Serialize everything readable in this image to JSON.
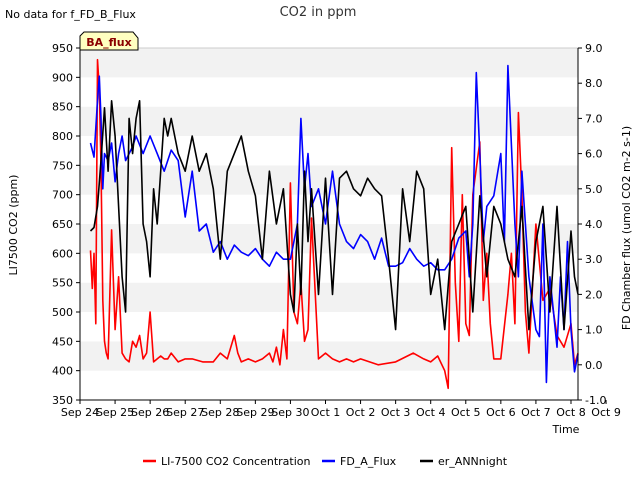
{
  "chart_data": {
    "type": "line",
    "title": "CO2 in ppm",
    "note": "No data for f_FD_B_Flux",
    "badge": "BA_flux",
    "xlabel": "Time",
    "ylabel": "LI7500 CO2 (ppm)",
    "y2label": "FD Chamber flux (umol CO2 m-2 s-1)",
    "xlim": [
      0,
      14.2
    ],
    "ylim": [
      350,
      950
    ],
    "y2lim": [
      -1.0,
      9.0
    ],
    "x_ticks": [
      {
        "v": 0,
        "label": "Sep 24"
      },
      {
        "v": 1,
        "label": "Sep 25"
      },
      {
        "v": 2,
        "label": "Sep 26"
      },
      {
        "v": 3,
        "label": "Sep 27"
      },
      {
        "v": 4,
        "label": "Sep 28"
      },
      {
        "v": 5,
        "label": "Sep 29"
      },
      {
        "v": 6,
        "label": "Sep 30"
      },
      {
        "v": 7,
        "label": "Oct 1"
      },
      {
        "v": 8,
        "label": "Oct 2"
      },
      {
        "v": 9,
        "label": "Oct 3"
      },
      {
        "v": 10,
        "label": "Oct 4"
      },
      {
        "v": 11,
        "label": "Oct 5"
      },
      {
        "v": 12,
        "label": "Oct 6"
      },
      {
        "v": 13,
        "label": "Oct 7"
      },
      {
        "v": 14,
        "label": "Oct 8"
      },
      {
        "v": 15,
        "label": "Oct 9"
      }
    ],
    "y_ticks": [
      350,
      400,
      450,
      500,
      550,
      600,
      650,
      700,
      750,
      800,
      850,
      900,
      950
    ],
    "y2_ticks": [
      {
        "v": -1.0,
        "label": "-1.0"
      },
      {
        "v": 0.0,
        "label": "0.0"
      },
      {
        "v": 1.0,
        "label": "1.0"
      },
      {
        "v": 2.0,
        "label": "2.0"
      },
      {
        "v": 3.0,
        "label": "3.0"
      },
      {
        "v": 4.0,
        "label": "4.0"
      },
      {
        "v": 5.0,
        "label": "5.0"
      },
      {
        "v": 6.0,
        "label": "6.0"
      },
      {
        "v": 7.0,
        "label": "7.0"
      },
      {
        "v": 8.0,
        "label": "8.0"
      },
      {
        "v": 9.0,
        "label": "9.0"
      }
    ],
    "grid": "horizontal bands",
    "legend_position": "bottom",
    "series": [
      {
        "name": "LI-7500 CO2 Concentration",
        "axis": "left",
        "color": "#ff0000",
        "x": [
          0.3,
          0.35,
          0.4,
          0.45,
          0.5,
          0.55,
          0.6,
          0.65,
          0.7,
          0.75,
          0.8,
          0.9,
          1.0,
          1.1,
          1.2,
          1.3,
          1.4,
          1.5,
          1.6,
          1.7,
          1.8,
          1.9,
          2.0,
          2.1,
          2.2,
          2.3,
          2.4,
          2.5,
          2.6,
          2.8,
          3.0,
          3.2,
          3.5,
          3.8,
          4.0,
          4.2,
          4.4,
          4.5,
          4.6,
          4.8,
          5.0,
          5.2,
          5.4,
          5.5,
          5.6,
          5.7,
          5.8,
          5.9,
          6.0,
          6.1,
          6.2,
          6.3,
          6.4,
          6.5,
          6.6,
          6.8,
          7.0,
          7.2,
          7.4,
          7.6,
          7.8,
          8.0,
          8.5,
          9.0,
          9.5,
          9.8,
          10.0,
          10.2,
          10.4,
          10.5,
          10.6,
          10.7,
          10.8,
          10.9,
          11.0,
          11.1,
          11.2,
          11.4,
          11.5,
          11.6,
          11.7,
          11.8,
          12.0,
          12.2,
          12.3,
          12.4,
          12.5,
          12.6,
          12.7,
          12.8,
          13.0,
          13.2,
          13.4,
          13.6,
          13.8,
          14.0,
          14.1,
          14.2
        ],
        "y": [
          605,
          540,
          600,
          480,
          930,
          880,
          750,
          520,
          450,
          430,
          420,
          640,
          470,
          560,
          430,
          420,
          415,
          450,
          440,
          460,
          420,
          430,
          500,
          415,
          420,
          425,
          420,
          420,
          430,
          415,
          420,
          420,
          415,
          415,
          430,
          420,
          460,
          430,
          415,
          420,
          415,
          420,
          430,
          415,
          440,
          410,
          470,
          420,
          720,
          500,
          480,
          550,
          450,
          470,
          660,
          420,
          430,
          420,
          415,
          420,
          415,
          420,
          410,
          415,
          430,
          420,
          415,
          425,
          400,
          370,
          780,
          550,
          450,
          700,
          480,
          460,
          700,
          790,
          520,
          600,
          480,
          420,
          420,
          530,
          600,
          480,
          840,
          700,
          500,
          430,
          650,
          520,
          540,
          460,
          440,
          480,
          410,
          430
        ]
      },
      {
        "name": "FD_A_Flux",
        "axis": "right",
        "color": "#0000ff",
        "x": [
          0.3,
          0.4,
          0.5,
          0.55,
          0.6,
          0.65,
          0.7,
          0.8,
          0.9,
          1.0,
          1.1,
          1.2,
          1.3,
          1.4,
          1.5,
          1.6,
          1.8,
          2.0,
          2.2,
          2.4,
          2.6,
          2.8,
          3.0,
          3.2,
          3.4,
          3.6,
          3.8,
          4.0,
          4.2,
          4.4,
          4.6,
          4.8,
          5.0,
          5.2,
          5.4,
          5.6,
          5.8,
          6.0,
          6.2,
          6.3,
          6.4,
          6.5,
          6.6,
          6.8,
          7.0,
          7.2,
          7.4,
          7.6,
          7.8,
          8.0,
          8.2,
          8.4,
          8.6,
          8.8,
          9.0,
          9.2,
          9.4,
          9.6,
          9.8,
          10.0,
          10.2,
          10.4,
          10.6,
          10.8,
          11.0,
          11.1,
          11.2,
          11.3,
          11.4,
          11.5,
          11.6,
          11.8,
          12.0,
          12.1,
          12.2,
          12.4,
          12.5,
          12.6,
          12.7,
          12.8,
          13.0,
          13.1,
          13.2,
          13.3,
          13.4,
          13.5,
          13.6,
          13.7,
          13.8,
          13.9,
          14.0,
          14.1,
          14.2
        ],
        "y": [
          6.3,
          5.9,
          7.5,
          8.2,
          7.0,
          5.0,
          6.0,
          5.8,
          6.3,
          5.2,
          6.0,
          6.5,
          5.8,
          6.0,
          6.2,
          6.5,
          6.0,
          6.5,
          6.0,
          5.5,
          6.1,
          5.8,
          4.2,
          5.5,
          3.8,
          4.0,
          3.2,
          3.5,
          3.0,
          3.4,
          3.2,
          3.1,
          3.3,
          3.0,
          2.8,
          3.2,
          3.0,
          3.0,
          4.0,
          7.0,
          5.0,
          6.0,
          4.5,
          5.0,
          4.0,
          5.5,
          4.0,
          3.5,
          3.3,
          3.7,
          3.5,
          3.0,
          3.6,
          2.8,
          2.8,
          2.9,
          3.3,
          3.0,
          2.8,
          2.9,
          2.7,
          2.7,
          3.0,
          3.6,
          3.8,
          2.5,
          4.0,
          8.3,
          6.0,
          3.5,
          4.5,
          4.8,
          6.0,
          3.5,
          8.5,
          4.0,
          2.5,
          5.5,
          4.0,
          2.5,
          1.0,
          0.8,
          4.0,
          -0.5,
          2.5,
          1.5,
          0.5,
          2.5,
          1.0,
          3.5,
          1.0,
          -0.2,
          0.3
        ]
      },
      {
        "name": "er_ANNnight",
        "axis": "right",
        "color": "#000000",
        "x": [
          0.3,
          0.4,
          0.5,
          0.6,
          0.7,
          0.8,
          0.9,
          1.0,
          1.1,
          1.2,
          1.3,
          1.4,
          1.5,
          1.6,
          1.7,
          1.8,
          1.9,
          2.0,
          2.1,
          2.2,
          2.3,
          2.4,
          2.5,
          2.6,
          2.8,
          3.0,
          3.2,
          3.4,
          3.6,
          3.8,
          4.0,
          4.2,
          4.4,
          4.6,
          4.8,
          5.0,
          5.2,
          5.4,
          5.6,
          5.8,
          6.0,
          6.1,
          6.2,
          6.3,
          6.4,
          6.5,
          6.6,
          6.8,
          7.0,
          7.2,
          7.4,
          7.6,
          7.8,
          8.0,
          8.2,
          8.4,
          8.6,
          8.8,
          9.0,
          9.2,
          9.4,
          9.6,
          9.8,
          10.0,
          10.2,
          10.4,
          10.6,
          10.8,
          11.0,
          11.2,
          11.4,
          11.6,
          11.8,
          12.0,
          12.2,
          12.4,
          12.6,
          12.8,
          13.0,
          13.2,
          13.4,
          13.6,
          13.8,
          14.0,
          14.1,
          14.2
        ],
        "y": [
          3.8,
          3.9,
          4.5,
          5.8,
          7.3,
          5.5,
          7.5,
          6.5,
          4.5,
          2.5,
          1.5,
          7.0,
          6.0,
          7.0,
          7.5,
          4.0,
          3.5,
          2.5,
          5.0,
          4.0,
          5.5,
          7.0,
          6.5,
          7.0,
          6.0,
          5.5,
          6.5,
          5.5,
          6.0,
          5.0,
          3.0,
          5.5,
          6.0,
          6.5,
          5.5,
          4.8,
          3.0,
          5.5,
          4.0,
          5.0,
          2.0,
          1.5,
          4.0,
          2.0,
          5.5,
          3.5,
          5.0,
          2.0,
          5.3,
          2.0,
          5.3,
          5.5,
          5.0,
          4.8,
          5.3,
          5.0,
          4.8,
          3.0,
          1.0,
          5.0,
          3.5,
          5.5,
          5.0,
          2.0,
          3.0,
          1.0,
          3.5,
          4.0,
          4.5,
          1.5,
          4.8,
          2.5,
          4.5,
          4.0,
          3.0,
          2.5,
          4.5,
          1.0,
          3.5,
          4.5,
          1.5,
          4.5,
          1.0,
          3.8,
          2.5,
          2.0
        ]
      }
    ]
  }
}
